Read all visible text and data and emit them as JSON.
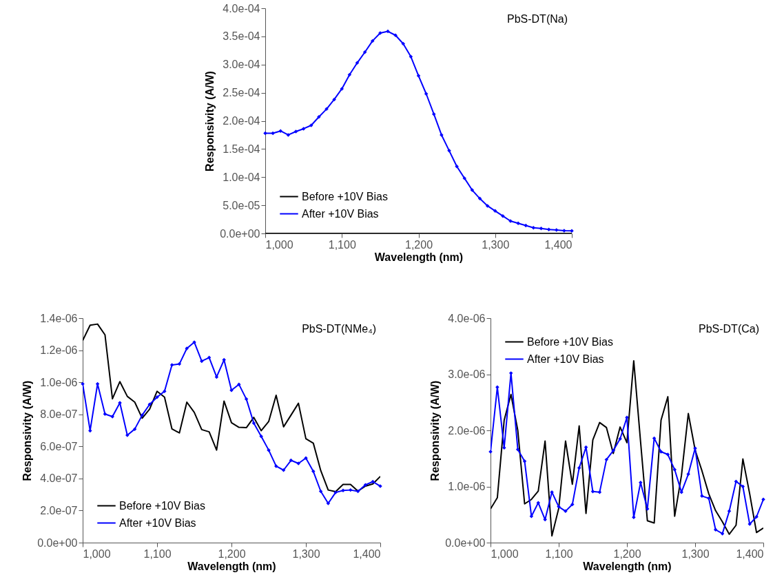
{
  "chart_data": [
    {
      "type": "line",
      "title": "PbS-DT(Na)",
      "xlabel": "Wavelength (nm)",
      "ylabel": "Responsivity (A/W)",
      "legend": "bottom left",
      "x": [
        1000,
        1010,
        1020,
        1030,
        1040,
        1050,
        1060,
        1070,
        1080,
        1090,
        1100,
        1110,
        1120,
        1130,
        1140,
        1150,
        1160,
        1170,
        1180,
        1190,
        1200,
        1210,
        1220,
        1230,
        1240,
        1250,
        1260,
        1270,
        1280,
        1290,
        1300,
        1310,
        1320,
        1330,
        1340,
        1350,
        1360,
        1370,
        1380,
        1390,
        1400
      ],
      "xlim": [
        1000,
        1400
      ],
      "xticks": [
        {
          "value": 1000,
          "label": "1,000"
        },
        {
          "value": 1100,
          "label": "1,100"
        },
        {
          "value": 1200,
          "label": "1,200"
        },
        {
          "value": 1300,
          "label": "1,300"
        },
        {
          "value": 1400,
          "label": "1,400"
        }
      ],
      "ylim": [
        0,
        0.0004
      ],
      "yticks": [
        {
          "value": 0,
          "label": "0.0e+00"
        },
        {
          "value": 5e-05,
          "label": "5.0e-05"
        },
        {
          "value": 0.0001,
          "label": "1.0e-04"
        },
        {
          "value": 0.00015,
          "label": "1.5e-04"
        },
        {
          "value": 0.0002,
          "label": "2.0e-04"
        },
        {
          "value": 0.00025,
          "label": "2.5e-04"
        },
        {
          "value": 0.0003,
          "label": "3.0e-04"
        },
        {
          "value": 0.00035,
          "label": "3.5e-04"
        },
        {
          "value": 0.0004,
          "label": "4.0e-04"
        }
      ],
      "series": [
        {
          "name": "Before +10V Bias",
          "color": "#000000",
          "marker": "none",
          "values": [
            0,
            0,
            0,
            0,
            0,
            0,
            0,
            0,
            0,
            0,
            0,
            0,
            0,
            0,
            0,
            0,
            0,
            0,
            0,
            0,
            0,
            0,
            0,
            0,
            0,
            0,
            0,
            0,
            0,
            0,
            0,
            0,
            0,
            0,
            0,
            0,
            0,
            0,
            0,
            0,
            0
          ]
        },
        {
          "name": "After +10V Bias",
          "color": "#0000ff",
          "marker": "diamond",
          "values": [
            0.000178,
            0.000178,
            0.000182,
            0.000175,
            0.000181,
            0.000186,
            0.000192,
            0.000207,
            0.000221,
            0.000238,
            0.000257,
            0.000282,
            0.000303,
            0.000322,
            0.000342,
            0.000356,
            0.000359,
            0.000352,
            0.000337,
            0.000314,
            0.00028,
            0.000248,
            0.000212,
            0.000175,
            0.000147,
            0.000119,
            9.8e-05,
            7.7e-05,
            6.2e-05,
            4.9e-05,
            4e-05,
            3.1e-05,
            2.2e-05,
            1.8e-05,
            1.4e-05,
            1e-05,
            9e-06,
            7e-06,
            6e-06,
            5e-06,
            4.5e-06
          ]
        }
      ]
    },
    {
      "type": "line",
      "title": "PbS-DT(NMe₄)",
      "xlabel": "Wavelength (nm)",
      "ylabel": "Responsivity (A/W)",
      "legend": "bottom left",
      "x": [
        1000,
        1010,
        1020,
        1030,
        1040,
        1050,
        1060,
        1070,
        1080,
        1090,
        1100,
        1110,
        1120,
        1130,
        1140,
        1150,
        1160,
        1170,
        1180,
        1190,
        1200,
        1210,
        1220,
        1230,
        1240,
        1250,
        1260,
        1270,
        1280,
        1290,
        1300,
        1310,
        1320,
        1330,
        1340,
        1350,
        1360,
        1370,
        1380,
        1390,
        1400
      ],
      "xlim": [
        1000,
        1400
      ],
      "xticks": [
        {
          "value": 1000,
          "label": "1,000"
        },
        {
          "value": 1100,
          "label": "1,100"
        },
        {
          "value": 1200,
          "label": "1,200"
        },
        {
          "value": 1300,
          "label": "1,300"
        },
        {
          "value": 1400,
          "label": "1,400"
        }
      ],
      "ylim": [
        0,
        1.4e-06
      ],
      "yticks": [
        {
          "value": 0,
          "label": "0.0e+00"
        },
        {
          "value": 2e-07,
          "label": "2.0e-07"
        },
        {
          "value": 4e-07,
          "label": "4.0e-07"
        },
        {
          "value": 6e-07,
          "label": "6.0e-07"
        },
        {
          "value": 8e-07,
          "label": "8.0e-07"
        },
        {
          "value": 1e-06,
          "label": "1.0e-06"
        },
        {
          "value": 1.2e-06,
          "label": "1.2e-06"
        },
        {
          "value": 1.4e-06,
          "label": "1.4e-06"
        }
      ],
      "series": [
        {
          "name": "Before +10V Bias",
          "color": "#000000",
          "marker": "none",
          "values": [
            1.26e-06,
            1.356e-06,
            1.363e-06,
            1.296e-06,
            8.97e-07,
            1.004e-06,
            9.12e-07,
            8.76e-07,
            7.76e-07,
            8.33e-07,
            9.44e-07,
            9.07e-07,
            7.09e-07,
            6.84e-07,
            8.76e-07,
            8.12e-07,
            7.05e-07,
            6.91e-07,
            5.77e-07,
            8.83e-07,
            7.48e-07,
            7.19e-07,
            7.17e-07,
            7.81e-07,
            6.98e-07,
            7.55e-07,
            9.19e-07,
            7.22e-07,
            7.95e-07,
            8.69e-07,
            6.48e-07,
            6.2e-07,
            4.49e-07,
            3.28e-07,
            3.18e-07,
            3.63e-07,
            3.63e-07,
            3.21e-07,
            3.52e-07,
            3.66e-07,
            4.13e-07
          ]
        },
        {
          "name": "After +10V Bias",
          "color": "#0000ff",
          "marker": "diamond",
          "values": [
            9.9e-07,
            6.98e-07,
            9.9e-07,
            8.02e-07,
            7.86e-07,
            8.72e-07,
            6.7e-07,
            7.08e-07,
            7.95e-07,
            8.62e-07,
            9.07e-07,
            9.44e-07,
            1.108e-06,
            1.114e-06,
            1.211e-06,
            1.25e-06,
            1.132e-06,
            1.154e-06,
            1.033e-06,
            1.14e-06,
            9.5e-07,
            9.87e-07,
            8.95e-07,
            7.45e-07,
            6.62e-07,
            5.77e-07,
            4.77e-07,
            4.52e-07,
            5.13e-07,
            4.94e-07,
            5.27e-07,
            4.44e-07,
            3.2e-07,
            2.45e-07,
            3.13e-07,
            3.25e-07,
            3.28e-07,
            3.2e-07,
            3.6e-07,
            3.8e-07,
            3.52e-07
          ]
        }
      ]
    },
    {
      "type": "line",
      "title": "PbS-DT(Ca)",
      "xlabel": "Wavelength (nm)",
      "ylabel": "Responsivity (A/W)",
      "legend": "top left",
      "x": [
        1000,
        1010,
        1020,
        1030,
        1040,
        1050,
        1060,
        1070,
        1080,
        1090,
        1100,
        1110,
        1120,
        1130,
        1140,
        1150,
        1160,
        1170,
        1180,
        1190,
        1200,
        1210,
        1220,
        1230,
        1240,
        1250,
        1260,
        1270,
        1280,
        1290,
        1300,
        1310,
        1320,
        1330,
        1340,
        1350,
        1360,
        1370,
        1380,
        1390,
        1400
      ],
      "xlim": [
        1000,
        1400
      ],
      "xticks": [
        {
          "value": 1000,
          "label": "1,000"
        },
        {
          "value": 1100,
          "label": "1,100"
        },
        {
          "value": 1200,
          "label": "1,200"
        },
        {
          "value": 1300,
          "label": "1,300"
        },
        {
          "value": 1400,
          "label": "1,400"
        }
      ],
      "ylim": [
        0,
        4e-06
      ],
      "yticks": [
        {
          "value": 0,
          "label": "0.0e+00"
        },
        {
          "value": 1e-06,
          "label": "1.0e-06"
        },
        {
          "value": 2e-06,
          "label": "2.0e-06"
        },
        {
          "value": 3e-06,
          "label": "3.0e-06"
        },
        {
          "value": 4e-06,
          "label": "4.0e-06"
        }
      ],
      "series": [
        {
          "name": "Before +10V Bias",
          "color": "#000000",
          "marker": "none",
          "values": [
            6e-07,
            8e-07,
            2.18e-06,
            2.64e-06,
            2e-06,
            6.9e-07,
            7.7e-07,
            9.2e-07,
            1.81e-06,
            1.2e-07,
            6.1e-07,
            1.81e-06,
            1.04e-06,
            2.08e-06,
            5.2e-07,
            1.83e-06,
            2.14e-06,
            2.05e-06,
            1.59e-06,
            2.06e-06,
            1.78e-06,
            3.24e-06,
            1.8e-06,
            3.9e-07,
            3.5e-07,
            2.18e-06,
            2.6e-06,
            4.7e-07,
            1.2e-06,
            2.3e-06,
            1.65e-06,
            1.28e-06,
            8.7e-07,
            5.7e-07,
            3.7e-07,
            1.5e-07,
            3.1e-07,
            1.49e-06,
            8.7e-07,
            1.8e-07,
            2.6e-07
          ]
        },
        {
          "name": "After +10V Bias",
          "color": "#0000ff",
          "marker": "diamond",
          "values": [
            1.62e-06,
            2.77e-06,
            1.69e-06,
            3.02e-06,
            1.66e-06,
            1.45e-06,
            4.7e-07,
            7.1e-07,
            4.1e-07,
            9e-07,
            6.4e-07,
            5.6e-07,
            6.8e-07,
            1.33e-06,
            1.7e-06,
            9.1e-07,
            9e-07,
            1.48e-06,
            1.64e-06,
            1.85e-06,
            2.23e-06,
            4.5e-07,
            1.07e-06,
            6e-07,
            1.86e-06,
            1.62e-06,
            1.57e-06,
            1.3e-06,
            9e-07,
            1.22e-06,
            1.68e-06,
            8.3e-07,
            7.9e-07,
            2.3e-07,
            1.6e-07,
            5.6e-07,
            1.09e-06,
            1e-06,
            3.3e-07,
            4.6e-07,
            7.7e-07
          ]
        }
      ]
    }
  ]
}
